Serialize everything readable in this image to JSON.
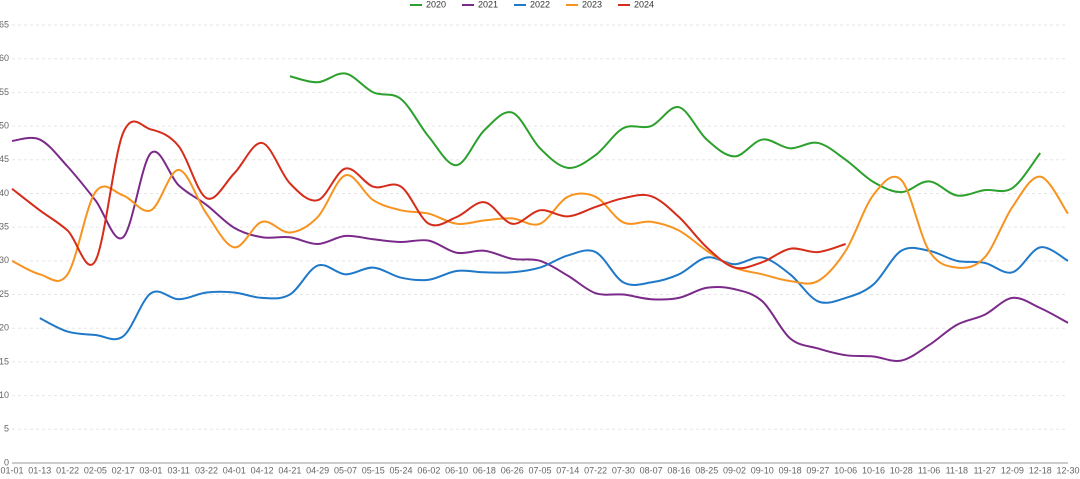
{
  "chart_data": {
    "type": "line",
    "categories": [
      "01-01",
      "01-13",
      "01-22",
      "02-05",
      "02-17",
      "03-01",
      "03-11",
      "03-22",
      "04-01",
      "04-12",
      "04-21",
      "04-29",
      "05-07",
      "05-15",
      "05-24",
      "06-02",
      "06-10",
      "06-18",
      "06-26",
      "07-05",
      "07-14",
      "07-22",
      "07-30",
      "08-07",
      "08-16",
      "08-25",
      "09-02",
      "09-10",
      "09-18",
      "09-27",
      "10-06",
      "10-16",
      "10-28",
      "11-06",
      "11-18",
      "11-27",
      "12-09",
      "12-18",
      "12-30"
    ],
    "series": [
      {
        "name": "2020",
        "color": "#2ca02c",
        "values": [
          null,
          null,
          null,
          null,
          null,
          null,
          null,
          null,
          null,
          null,
          57.4,
          56.5,
          57.8,
          55,
          54,
          48.4,
          44.2,
          49.4,
          52,
          46.7,
          43.8,
          45.7,
          49.7,
          50,
          52.8,
          48,
          45.5,
          48,
          46.7,
          47.5,
          45,
          41.7,
          40.2,
          41.8,
          39.7,
          40.5,
          40.8,
          46,
          null
        ]
      },
      {
        "name": "2021",
        "color": "#7b2a8a",
        "values": [
          47.8,
          48,
          44,
          39,
          33.5,
          46,
          41.2,
          38.3,
          34.9,
          33.5,
          33.5,
          32.5,
          33.7,
          33.2,
          32.8,
          33,
          31.2,
          31.5,
          30.3,
          30,
          27.8,
          25.2,
          25,
          24.3,
          24.5,
          26,
          25.8,
          24,
          18.5,
          17,
          16,
          15.8,
          15.2,
          17.5,
          20.5,
          22,
          24.5,
          23,
          20.8
        ]
      },
      {
        "name": "2022",
        "color": "#1f78c8",
        "values": [
          null,
          21.5,
          19.5,
          19,
          18.8,
          25.2,
          24.3,
          25.3,
          25.3,
          24.5,
          25,
          29.3,
          28,
          29,
          27.5,
          27.2,
          28.5,
          28.3,
          28.3,
          29,
          30.8,
          31.3,
          26.8,
          26.8,
          28,
          30.5,
          29.5,
          30.5,
          28,
          24,
          24.5,
          26.5,
          31.5,
          31.5,
          30,
          29.7,
          28.3,
          32,
          30
        ]
      },
      {
        "name": "2023",
        "color": "#f7931e",
        "values": [
          30,
          28,
          28,
          40.2,
          39.7,
          37.5,
          43.5,
          37,
          32,
          35.8,
          34.2,
          36.5,
          42.7,
          39,
          37.5,
          37,
          35.5,
          36,
          36.3,
          35.5,
          39.5,
          39.5,
          35.7,
          35.8,
          34.5,
          31.5,
          29,
          28,
          27,
          27,
          31.5,
          39.8,
          42,
          31.5,
          29,
          30.5,
          38,
          42.5,
          37
        ]
      },
      {
        "name": "2024",
        "color": "#d62c1a",
        "values": [
          40.7,
          37.5,
          34.5,
          30,
          49,
          49.5,
          47,
          39.3,
          43,
          47.5,
          41.5,
          39,
          43.7,
          41,
          41,
          35.5,
          36.5,
          38.7,
          35.5,
          37.5,
          36.6,
          38,
          39.3,
          39.6,
          36.5,
          32,
          29,
          29.8,
          31.8,
          31.3,
          32.5,
          null,
          null,
          null,
          null,
          null,
          null,
          null,
          null
        ]
      }
    ],
    "ylim": [
      0,
      65
    ],
    "yticks": [
      0,
      5,
      10,
      15,
      20,
      25,
      30,
      35,
      40,
      45,
      50,
      55,
      60,
      65
    ],
    "grid": true,
    "legend": "top"
  }
}
